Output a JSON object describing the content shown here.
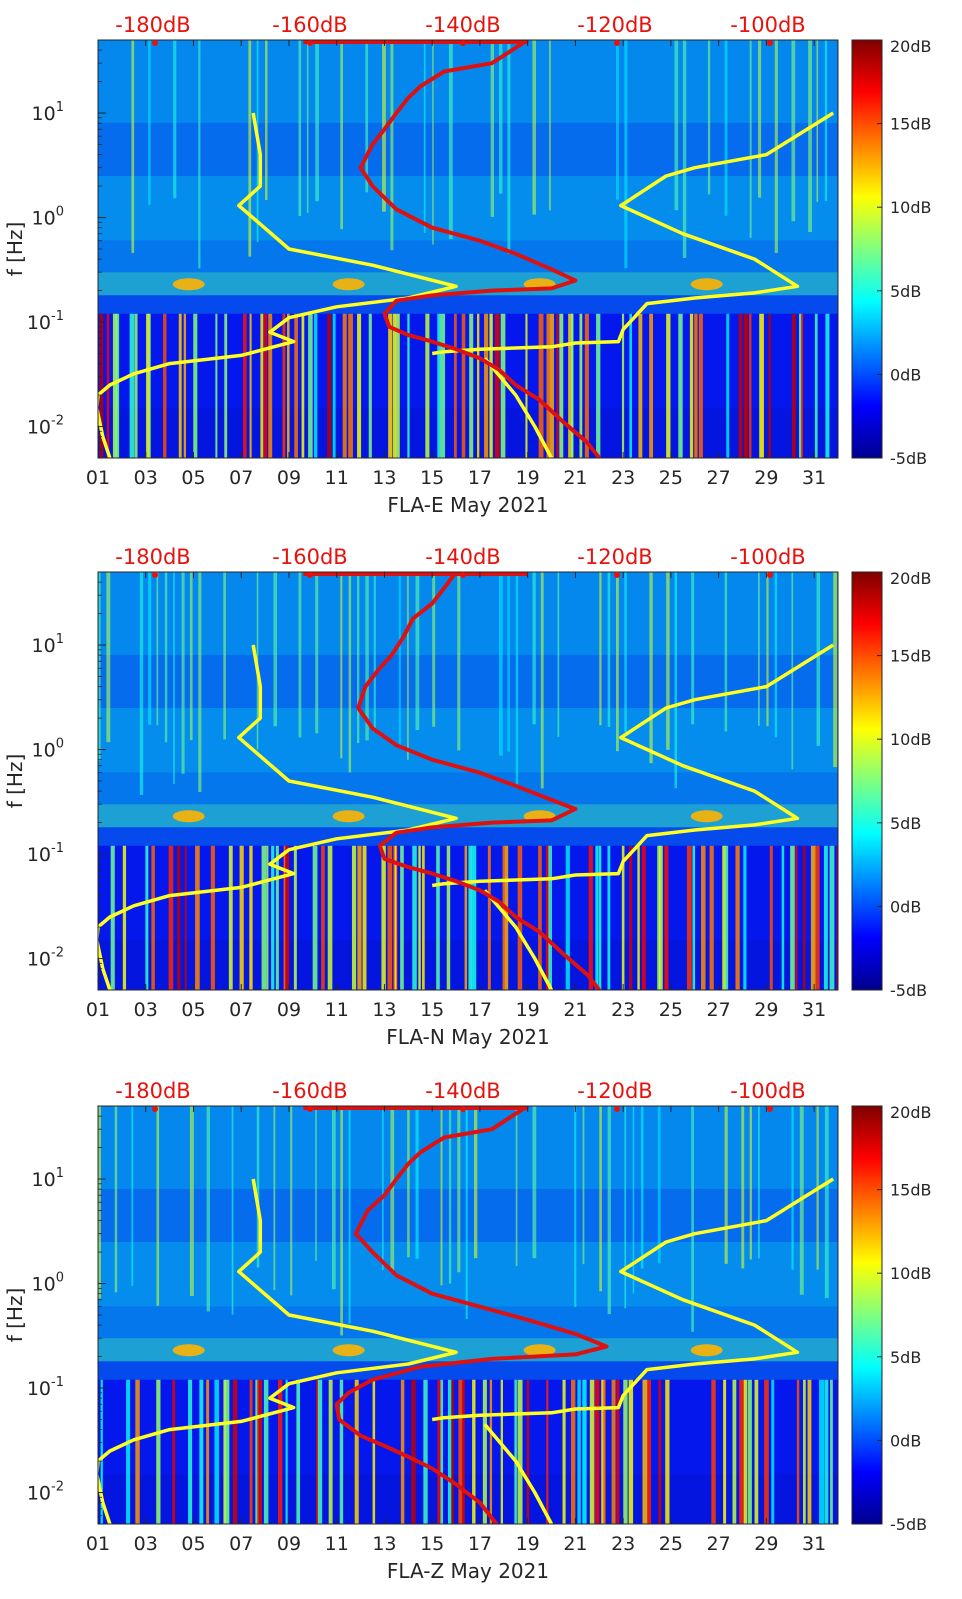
{
  "figure": {
    "panel_count": 3,
    "colormap": "jet"
  },
  "chart_data": [
    {
      "type": "heatmap",
      "title": "",
      "xlabel": "FLA-E May 2021",
      "ylabel": "f [Hz]",
      "x_ticks": [
        "01",
        "03",
        "05",
        "07",
        "09",
        "11",
        "13",
        "15",
        "17",
        "19",
        "21",
        "23",
        "25",
        "27",
        "29",
        "31"
      ],
      "x_range_days": [
        1,
        32
      ],
      "y_scale": "log",
      "y_range_hz": [
        0.005,
        50
      ],
      "y_ticks": [
        {
          "exp": "-2"
        },
        {
          "exp": "-1"
        },
        {
          "exp": "0"
        },
        {
          "exp": "1"
        }
      ],
      "colorbar": {
        "range_db": [
          -5,
          20
        ],
        "ticks": [
          "20dB",
          "15dB",
          "10dB",
          "5dB",
          "0dB",
          "-5dB"
        ]
      },
      "overlay_db_axis": {
        "labels": [
          "-180dB",
          "-160dB",
          "-140dB",
          "-120dB",
          "-100dB"
        ],
        "color": "#e8120c"
      },
      "series": [
        {
          "name": "yellow-noise-model",
          "color": "#ffff22",
          "points": [
            [
              7.5,
              10
            ],
            [
              7.8,
              4
            ],
            [
              7.8,
              2
            ],
            [
              6.9,
              1.3
            ],
            [
              9,
              0.5
            ],
            [
              12.5,
              0.35
            ],
            [
              16,
              0.22
            ],
            [
              14,
              0.17
            ],
            [
              11,
              0.14
            ],
            [
              9,
              0.11
            ],
            [
              8.2,
              0.08
            ],
            [
              9.2,
              0.065
            ],
            [
              7,
              0.048
            ],
            [
              4,
              0.04
            ],
            [
              2.5,
              0.032
            ],
            [
              1.5,
              0.025
            ],
            [
              1,
              0.02
            ],
            [
              0.95,
              0.015
            ],
            [
              1.2,
              0.008
            ],
            [
              1.5,
              0.005
            ]
          ]
        },
        {
          "name": "yellow-noise-model-2",
          "color": "#ffff22",
          "points": [
            [
              17.2,
              0.045
            ],
            [
              18.5,
              0.02
            ],
            [
              19.3,
              0.01
            ],
            [
              20,
              0.005
            ]
          ]
        },
        {
          "name": "yellow-noise-model-3",
          "color": "#ffff22",
          "points": [
            [
              31.8,
              10
            ],
            [
              29,
              4
            ],
            [
              26,
              3
            ],
            [
              24.8,
              2.5
            ],
            [
              22.9,
              1.3
            ],
            [
              25.5,
              0.7
            ],
            [
              28.5,
              0.4
            ],
            [
              30.3,
              0.22
            ],
            [
              28.5,
              0.19
            ],
            [
              26,
              0.17
            ],
            [
              24,
              0.15
            ],
            [
              23,
              0.085
            ],
            [
              22.8,
              0.065
            ],
            [
              21,
              0.063
            ],
            [
              20,
              0.058
            ],
            [
              17,
              0.055
            ],
            [
              15.5,
              0.052
            ],
            [
              15,
              0.05
            ]
          ]
        },
        {
          "name": "red-spectrum",
          "color": "#dd1111",
          "points": [
            [
              19,
              50
            ],
            [
              17.5,
              30
            ],
            [
              15.5,
              25
            ],
            [
              14.5,
              18
            ],
            [
              14,
              14
            ],
            [
              13.5,
              10
            ],
            [
              13,
              7
            ],
            [
              12.5,
              5
            ],
            [
              12,
              3
            ],
            [
              12.5,
              2
            ],
            [
              13.5,
              1.2
            ],
            [
              15,
              0.8
            ],
            [
              17,
              0.6
            ],
            [
              18.5,
              0.45
            ],
            [
              20,
              0.32
            ],
            [
              21,
              0.25
            ],
            [
              20,
              0.21
            ],
            [
              17.5,
              0.2
            ],
            [
              15,
              0.18
            ],
            [
              13.5,
              0.16
            ],
            [
              13,
              0.12
            ],
            [
              13.2,
              0.09
            ],
            [
              14,
              0.075
            ],
            [
              15,
              0.065
            ],
            [
              16,
              0.055
            ],
            [
              17,
              0.045
            ],
            [
              17.8,
              0.035
            ],
            [
              18.5,
              0.025
            ],
            [
              19.5,
              0.018
            ],
            [
              20.5,
              0.011
            ],
            [
              21.5,
              0.007
            ],
            [
              22,
              0.005
            ]
          ]
        }
      ]
    },
    {
      "type": "heatmap",
      "title": "",
      "xlabel": "FLA-N May 2021",
      "ylabel": "f [Hz]",
      "x_ticks": [
        "01",
        "03",
        "05",
        "07",
        "09",
        "11",
        "13",
        "15",
        "17",
        "19",
        "21",
        "23",
        "25",
        "27",
        "29",
        "31"
      ],
      "x_range_days": [
        1,
        32
      ],
      "y_scale": "log",
      "y_range_hz": [
        0.005,
        50
      ],
      "y_ticks": [
        {
          "exp": "-2"
        },
        {
          "exp": "-1"
        },
        {
          "exp": "0"
        },
        {
          "exp": "1"
        }
      ],
      "colorbar": {
        "range_db": [
          -5,
          20
        ],
        "ticks": [
          "20dB",
          "15dB",
          "10dB",
          "5dB",
          "0dB",
          "-5dB"
        ]
      },
      "overlay_db_axis": {
        "labels": [
          "-180dB",
          "-160dB",
          "-140dB",
          "-120dB",
          "-100dB"
        ],
        "color": "#e8120c"
      },
      "series": [
        {
          "name": "yellow-noise-model",
          "color": "#ffff22",
          "points": [
            [
              7.5,
              10
            ],
            [
              7.8,
              4
            ],
            [
              7.8,
              2
            ],
            [
              6.9,
              1.3
            ],
            [
              9,
              0.5
            ],
            [
              12.5,
              0.35
            ],
            [
              16,
              0.22
            ],
            [
              14,
              0.17
            ],
            [
              11,
              0.14
            ],
            [
              9,
              0.11
            ],
            [
              8.2,
              0.08
            ],
            [
              9.2,
              0.065
            ],
            [
              7,
              0.048
            ],
            [
              4,
              0.04
            ],
            [
              2.5,
              0.032
            ],
            [
              1.5,
              0.025
            ],
            [
              1,
              0.02
            ],
            [
              0.95,
              0.015
            ],
            [
              1.2,
              0.008
            ],
            [
              1.5,
              0.005
            ]
          ]
        },
        {
          "name": "yellow-noise-model-2",
          "color": "#ffff22",
          "points": [
            [
              17.2,
              0.045
            ],
            [
              18.5,
              0.02
            ],
            [
              19.3,
              0.01
            ],
            [
              20,
              0.005
            ]
          ]
        },
        {
          "name": "yellow-noise-model-3",
          "color": "#ffff22",
          "points": [
            [
              31.8,
              10
            ],
            [
              29,
              4
            ],
            [
              26,
              3
            ],
            [
              24.8,
              2.5
            ],
            [
              22.9,
              1.3
            ],
            [
              25.5,
              0.7
            ],
            [
              28.5,
              0.4
            ],
            [
              30.3,
              0.22
            ],
            [
              28.5,
              0.19
            ],
            [
              26,
              0.17
            ],
            [
              24,
              0.15
            ],
            [
              23,
              0.085
            ],
            [
              22.8,
              0.065
            ],
            [
              21,
              0.063
            ],
            [
              20,
              0.058
            ],
            [
              17,
              0.055
            ],
            [
              15.5,
              0.052
            ],
            [
              15,
              0.05
            ]
          ]
        },
        {
          "name": "red-spectrum",
          "color": "#dd1111",
          "points": [
            [
              16,
              50
            ],
            [
              15.5,
              35
            ],
            [
              15,
              25
            ],
            [
              14.2,
              18
            ],
            [
              13.8,
              12
            ],
            [
              13.3,
              8
            ],
            [
              12.8,
              6
            ],
            [
              12.2,
              4
            ],
            [
              11.9,
              2.5
            ],
            [
              12.5,
              1.6
            ],
            [
              13.5,
              1.1
            ],
            [
              15,
              0.8
            ],
            [
              17,
              0.6
            ],
            [
              18.5,
              0.45
            ],
            [
              20,
              0.33
            ],
            [
              21,
              0.27
            ],
            [
              20,
              0.21
            ],
            [
              17.5,
              0.2
            ],
            [
              15,
              0.18
            ],
            [
              13.5,
              0.16
            ],
            [
              12.8,
              0.12
            ],
            [
              13,
              0.09
            ],
            [
              14,
              0.075
            ],
            [
              15,
              0.065
            ],
            [
              16,
              0.055
            ],
            [
              17,
              0.045
            ],
            [
              17.8,
              0.035
            ],
            [
              18.5,
              0.025
            ],
            [
              19.5,
              0.018
            ],
            [
              20.5,
              0.011
            ],
            [
              21.5,
              0.007
            ],
            [
              22,
              0.005
            ]
          ]
        }
      ]
    },
    {
      "type": "heatmap",
      "title": "",
      "xlabel": "FLA-Z May 2021",
      "ylabel": "f [Hz]",
      "x_ticks": [
        "01",
        "03",
        "05",
        "07",
        "09",
        "11",
        "13",
        "15",
        "17",
        "19",
        "21",
        "23",
        "25",
        "27",
        "29",
        "31"
      ],
      "x_range_days": [
        1,
        32
      ],
      "y_scale": "log",
      "y_range_hz": [
        0.005,
        50
      ],
      "y_ticks": [
        {
          "exp": "-2"
        },
        {
          "exp": "-1"
        },
        {
          "exp": "0"
        },
        {
          "exp": "1"
        }
      ],
      "colorbar": {
        "range_db": [
          -5,
          20
        ],
        "ticks": [
          "20dB",
          "15dB",
          "10dB",
          "5dB",
          "0dB",
          "-5dB"
        ]
      },
      "overlay_db_axis": {
        "labels": [
          "-180dB",
          "-160dB",
          "-140dB",
          "-120dB",
          "-100dB"
        ],
        "color": "#e8120c"
      },
      "series": [
        {
          "name": "yellow-noise-model",
          "color": "#ffff22",
          "points": [
            [
              7.5,
              10
            ],
            [
              7.8,
              4
            ],
            [
              7.8,
              2
            ],
            [
              6.9,
              1.3
            ],
            [
              9,
              0.5
            ],
            [
              12.5,
              0.35
            ],
            [
              16,
              0.22
            ],
            [
              14,
              0.17
            ],
            [
              11,
              0.14
            ],
            [
              9,
              0.11
            ],
            [
              8.2,
              0.08
            ],
            [
              9.2,
              0.065
            ],
            [
              7,
              0.048
            ],
            [
              4,
              0.04
            ],
            [
              2.5,
              0.032
            ],
            [
              1.5,
              0.025
            ],
            [
              1,
              0.02
            ],
            [
              0.95,
              0.015
            ],
            [
              1.2,
              0.008
            ],
            [
              1.5,
              0.005
            ]
          ]
        },
        {
          "name": "yellow-noise-model-2",
          "color": "#ffff22",
          "points": [
            [
              17.2,
              0.045
            ],
            [
              18.5,
              0.02
            ],
            [
              19.3,
              0.01
            ],
            [
              20,
              0.005
            ]
          ]
        },
        {
          "name": "yellow-noise-model-3",
          "color": "#ffff22",
          "points": [
            [
              31.8,
              10
            ],
            [
              29,
              4
            ],
            [
              26,
              3
            ],
            [
              24.8,
              2.5
            ],
            [
              22.9,
              1.3
            ],
            [
              25.5,
              0.7
            ],
            [
              28.5,
              0.4
            ],
            [
              30.3,
              0.22
            ],
            [
              28.5,
              0.19
            ],
            [
              26,
              0.17
            ],
            [
              24,
              0.15
            ],
            [
              23,
              0.085
            ],
            [
              22.8,
              0.065
            ],
            [
              21,
              0.063
            ],
            [
              20,
              0.058
            ],
            [
              17,
              0.055
            ],
            [
              15.5,
              0.052
            ],
            [
              15,
              0.05
            ]
          ]
        },
        {
          "name": "red-spectrum",
          "color": "#dd1111",
          "points": [
            [
              19,
              50
            ],
            [
              17.5,
              30
            ],
            [
              15.5,
              25
            ],
            [
              14.5,
              18
            ],
            [
              14,
              14
            ],
            [
              13.5,
              10
            ],
            [
              13,
              7
            ],
            [
              12.3,
              5
            ],
            [
              11.8,
              3
            ],
            [
              12.5,
              2
            ],
            [
              13.5,
              1.2
            ],
            [
              15,
              0.8
            ],
            [
              17,
              0.6
            ],
            [
              19,
              0.45
            ],
            [
              21,
              0.33
            ],
            [
              22.3,
              0.25
            ],
            [
              21,
              0.21
            ],
            [
              17.5,
              0.19
            ],
            [
              14.5,
              0.16
            ],
            [
              12.5,
              0.12
            ],
            [
              11.5,
              0.09
            ],
            [
              11,
              0.07
            ],
            [
              11.1,
              0.05
            ],
            [
              12,
              0.035
            ],
            [
              13,
              0.028
            ],
            [
              14,
              0.022
            ],
            [
              15,
              0.017
            ],
            [
              16,
              0.012
            ],
            [
              17,
              0.008
            ],
            [
              17.7,
              0.005
            ]
          ]
        }
      ]
    }
  ]
}
